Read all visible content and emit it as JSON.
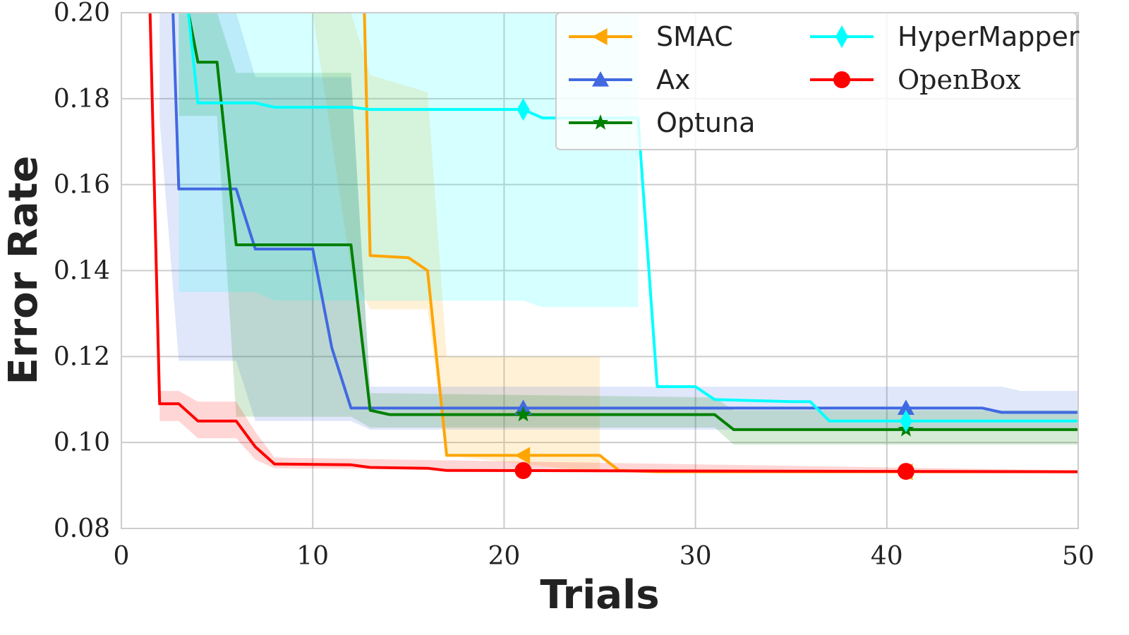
{
  "chart_data": {
    "type": "line",
    "xlabel": "Trials",
    "ylabel": "Error Rate",
    "xlim": [
      0,
      50
    ],
    "ylim": [
      0.08,
      0.2
    ],
    "xticks": [
      0,
      10,
      20,
      30,
      40,
      50
    ],
    "xtick_labels": [
      "0",
      "10",
      "20",
      "30",
      "40",
      "50"
    ],
    "yticks": [
      0.08,
      0.1,
      0.12,
      0.14,
      0.16,
      0.18,
      0.2
    ],
    "ytick_labels": [
      "0.08",
      "0.10",
      "0.12",
      "0.14",
      "0.16",
      "0.18",
      "0.20"
    ],
    "grid": true,
    "legend_position": "top-right",
    "series": [
      {
        "name": "SMAC",
        "color": "#FFA500",
        "marker": "triangle-left",
        "step": true,
        "points": [
          [
            12,
            0.26
          ],
          [
            12.7,
            0.2
          ],
          [
            13,
            0.1435
          ],
          [
            15,
            0.143
          ],
          [
            16,
            0.14
          ],
          [
            17,
            0.097
          ],
          [
            25,
            0.097
          ],
          [
            26,
            0.0935
          ],
          [
            28,
            0.0932
          ],
          [
            50,
            0.0932
          ]
        ],
        "band_upper": [
          [
            10,
            0.26
          ],
          [
            12,
            0.2
          ],
          [
            13,
            0.1855
          ],
          [
            16,
            0.1815
          ],
          [
            17,
            0.12
          ],
          [
            50,
            0.12
          ]
        ],
        "band_lower": [
          [
            10,
            0.2
          ],
          [
            12,
            0.14
          ],
          [
            13,
            0.131
          ],
          [
            16,
            0.131
          ],
          [
            17,
            0.097
          ],
          [
            25,
            0.093
          ],
          [
            26,
            0.093
          ],
          [
            50,
            0.093
          ]
        ],
        "band_end": 25,
        "markers_at": [
          21,
          41
        ]
      },
      {
        "name": "Ax",
        "color": "#4169E1",
        "marker": "triangle-up",
        "step": true,
        "points": [
          [
            2.7,
            0.2
          ],
          [
            3,
            0.159
          ],
          [
            6,
            0.159
          ],
          [
            7,
            0.145
          ],
          [
            10,
            0.145
          ],
          [
            11,
            0.122
          ],
          [
            12,
            0.108
          ],
          [
            45,
            0.108
          ],
          [
            46,
            0.107
          ],
          [
            50,
            0.107
          ]
        ],
        "band_upper": [
          [
            2,
            0.2
          ],
          [
            3,
            0.2
          ],
          [
            4,
            0.2
          ],
          [
            6,
            0.2
          ],
          [
            7,
            0.185
          ],
          [
            12,
            0.185
          ],
          [
            13,
            0.113
          ],
          [
            46,
            0.113
          ],
          [
            47,
            0.112
          ],
          [
            50,
            0.112
          ]
        ],
        "band_lower": [
          [
            2,
            0.175
          ],
          [
            3,
            0.119
          ],
          [
            6,
            0.119
          ],
          [
            7,
            0.105
          ],
          [
            12,
            0.105
          ],
          [
            13,
            0.103
          ],
          [
            50,
            0.103
          ]
        ],
        "markers_at": [
          21,
          41
        ]
      },
      {
        "name": "Optuna",
        "color": "#008000",
        "marker": "star",
        "step": true,
        "points": [
          [
            3.5,
            0.2
          ],
          [
            4,
            0.1885
          ],
          [
            5,
            0.1885
          ],
          [
            6,
            0.146
          ],
          [
            12,
            0.146
          ],
          [
            13,
            0.1075
          ],
          [
            14,
            0.1065
          ],
          [
            31,
            0.1065
          ],
          [
            32,
            0.103
          ],
          [
            50,
            0.103
          ]
        ],
        "band_upper": [
          [
            3,
            0.2
          ],
          [
            5,
            0.2
          ],
          [
            6,
            0.186
          ],
          [
            12,
            0.186
          ],
          [
            13,
            0.1115
          ],
          [
            31,
            0.1105
          ],
          [
            32,
            0.1075
          ],
          [
            50,
            0.1075
          ]
        ],
        "band_lower": [
          [
            3,
            0.176
          ],
          [
            5,
            0.176
          ],
          [
            6,
            0.106
          ],
          [
            12,
            0.106
          ],
          [
            13,
            0.1035
          ],
          [
            31,
            0.1035
          ],
          [
            32,
            0.0995
          ],
          [
            50,
            0.0995
          ]
        ],
        "markers_at": [
          21,
          41
        ]
      },
      {
        "name": "HyperMapper",
        "color": "#00FFFF",
        "marker": "diamond",
        "step": true,
        "points": [
          [
            3.5,
            0.2
          ],
          [
            4,
            0.179
          ],
          [
            7,
            0.179
          ],
          [
            8,
            0.178
          ],
          [
            12,
            0.178
          ],
          [
            13,
            0.1775
          ],
          [
            21,
            0.1775
          ],
          [
            22,
            0.1755
          ],
          [
            27,
            0.1755
          ],
          [
            28,
            0.113
          ],
          [
            30,
            0.113
          ],
          [
            31,
            0.11
          ],
          [
            35,
            0.1095
          ],
          [
            36,
            0.1095
          ],
          [
            37,
            0.105
          ],
          [
            50,
            0.105
          ]
        ],
        "band_upper": [
          [
            3,
            0.2
          ],
          [
            50,
            0.2
          ]
        ],
        "band_lower": [
          [
            3,
            0.135
          ],
          [
            7,
            0.135
          ],
          [
            8,
            0.133
          ],
          [
            21,
            0.133
          ],
          [
            22,
            0.1315
          ],
          [
            27,
            0.1315
          ],
          [
            28,
            0.1095
          ],
          [
            36,
            0.1065
          ],
          [
            37,
            0.1015
          ],
          [
            50,
            0.1015
          ]
        ],
        "band_end": 27,
        "markers_at": [
          21,
          41
        ]
      },
      {
        "name": "OpenBox",
        "color": "#FF0000",
        "marker": "circle",
        "step": false,
        "points": [
          [
            1.5,
            0.2
          ],
          [
            2,
            0.109
          ],
          [
            3,
            0.109
          ],
          [
            4,
            0.105
          ],
          [
            6,
            0.105
          ],
          [
            7,
            0.099
          ],
          [
            8,
            0.095
          ],
          [
            12,
            0.0948
          ],
          [
            13,
            0.0942
          ],
          [
            16,
            0.094
          ],
          [
            17,
            0.0935
          ],
          [
            50,
            0.0932
          ]
        ],
        "band_upper": [
          [
            2,
            0.112
          ],
          [
            3,
            0.112
          ],
          [
            4,
            0.1095
          ],
          [
            6,
            0.1095
          ],
          [
            7,
            0.1025
          ],
          [
            8,
            0.0965
          ],
          [
            50,
            0.0935
          ]
        ],
        "band_lower": [
          [
            2,
            0.105
          ],
          [
            3,
            0.105
          ],
          [
            4,
            0.101
          ],
          [
            6,
            0.101
          ],
          [
            7,
            0.096
          ],
          [
            8,
            0.094
          ],
          [
            50,
            0.093
          ]
        ],
        "markers_at": [
          21,
          41
        ]
      }
    ]
  }
}
